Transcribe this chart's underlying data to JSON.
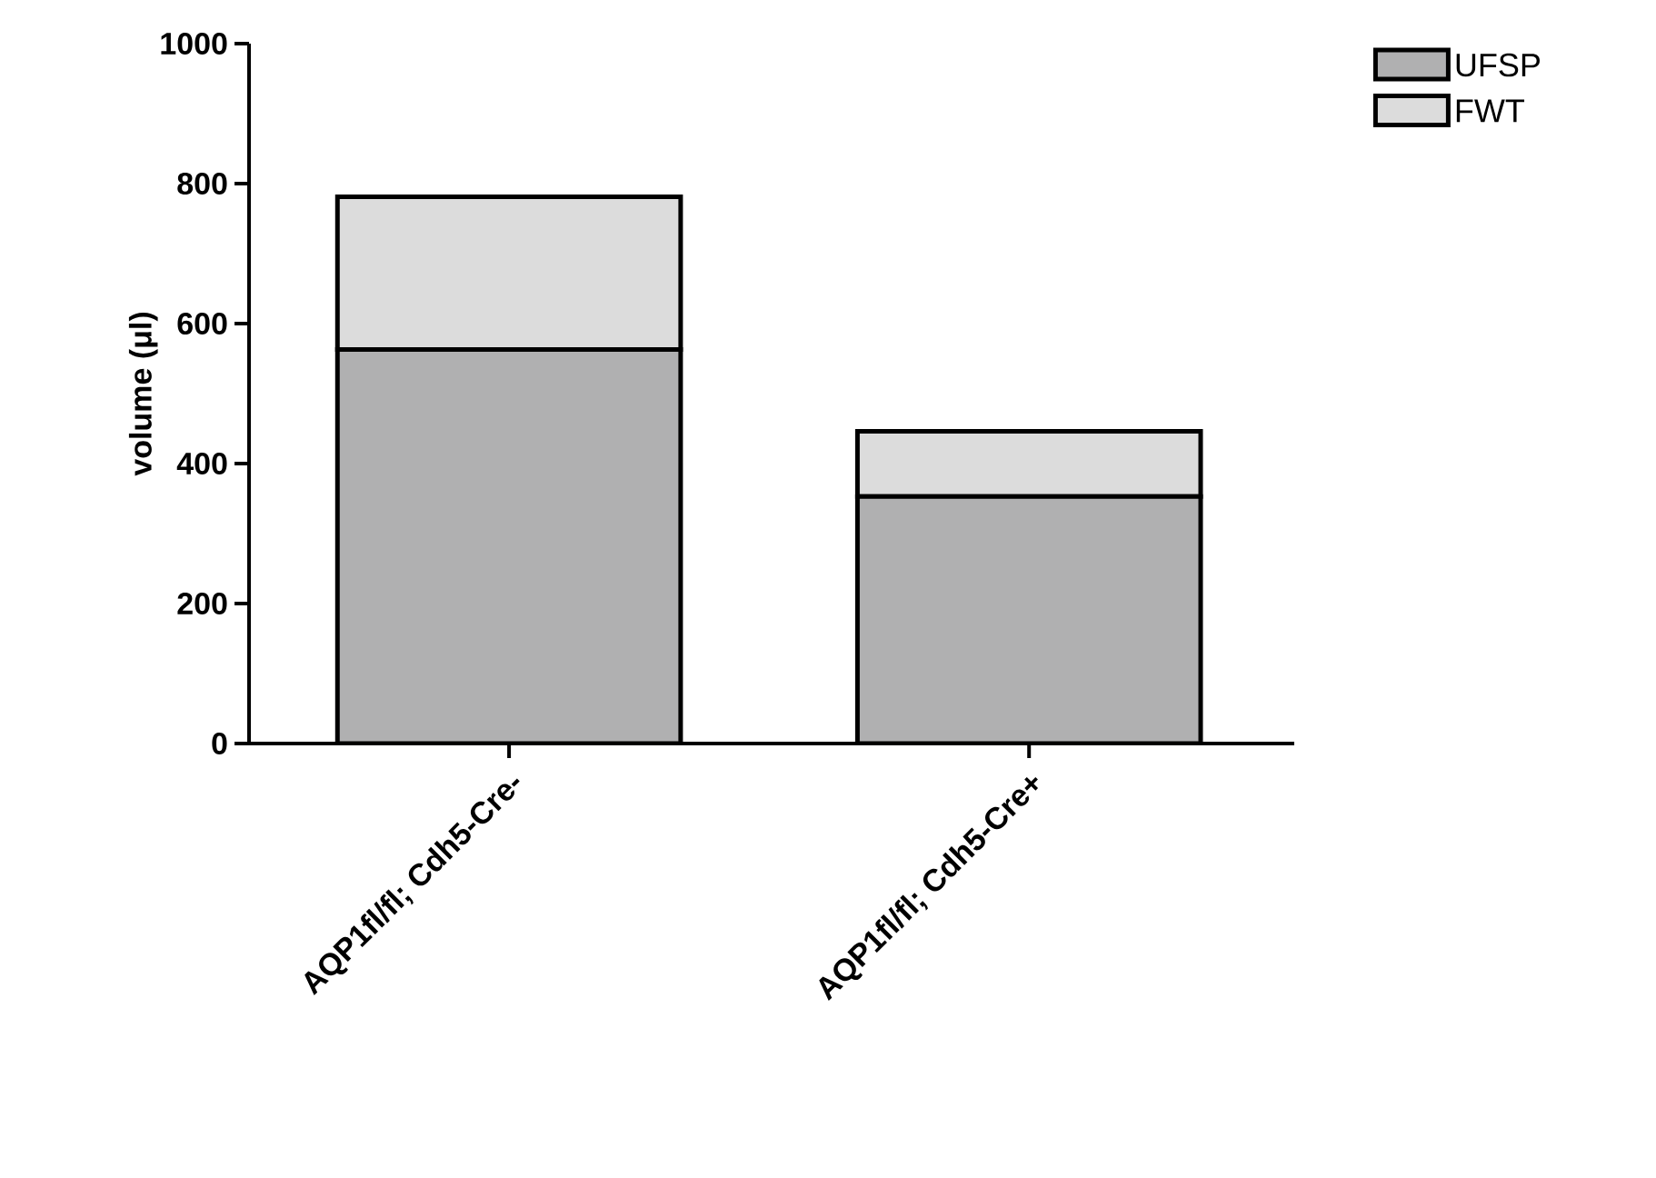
{
  "chart_data": {
    "type": "bar",
    "stacked": true,
    "ylabel": "volume (μl)",
    "categories": [
      "AQP1fl/fl; Cdh5-Cre-",
      "AQP1fl/fl; Cdh5-Cre+"
    ],
    "series": [
      {
        "name": "UFSP",
        "color": "#b0b0b1",
        "values": [
          563,
          353
        ]
      },
      {
        "name": "FWT",
        "color": "#dcdcdc",
        "values": [
          218,
          93
        ]
      }
    ],
    "ylim": [
      0,
      1000
    ],
    "yticks": [
      0,
      200,
      400,
      600,
      800,
      1000
    ],
    "legend": "top right"
  }
}
